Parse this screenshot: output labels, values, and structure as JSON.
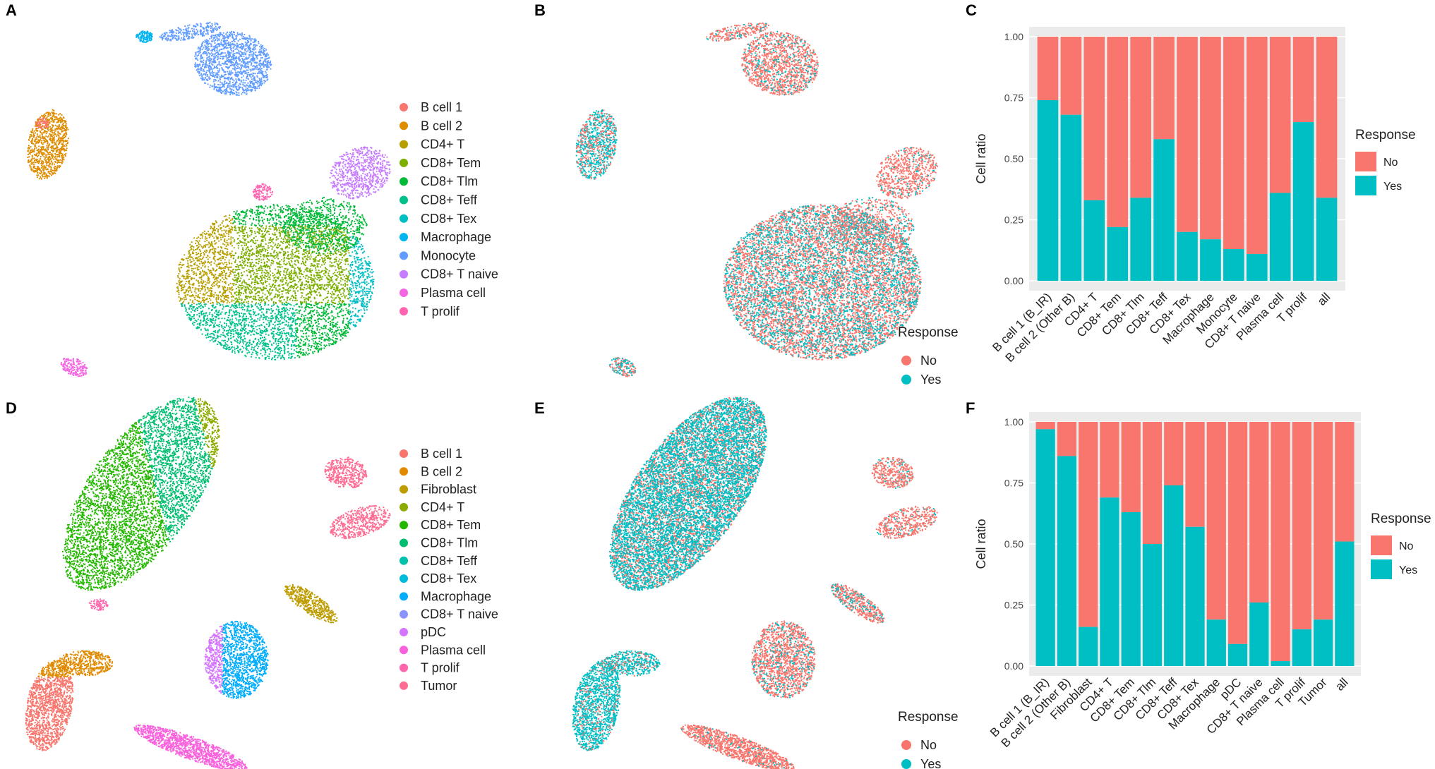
{
  "colors": {
    "red": "#F8766D",
    "teal": "#00BFC4",
    "panel_bg": "#EBEBEB",
    "grid": "#FFFFFF"
  },
  "panels": {
    "A": {
      "label": "A",
      "legend": [
        "B cell 1",
        "B cell 2",
        "CD4+ T",
        "CD8+ Tem",
        "CD8+ Tlm",
        "CD8+ Teff",
        "CD8+ Tex",
        "Macrophage",
        "Monocyte",
        "CD8+ T naive",
        "Plasma cell",
        "T prolif"
      ],
      "legend_colors": [
        "#F8766D",
        "#DE8C00",
        "#B79F00",
        "#7CAE00",
        "#00BA38",
        "#00C08B",
        "#00BFC4",
        "#00B4F0",
        "#619CFF",
        "#C77CFF",
        "#F564E3",
        "#FF64B0"
      ]
    },
    "B": {
      "label": "B",
      "legend_title": "Response",
      "legend": [
        "No",
        "Yes"
      ]
    },
    "D": {
      "label": "D",
      "legend": [
        "B cell 1",
        "B cell 2",
        "Fibroblast",
        "CD4+ T",
        "CD8+ Tem",
        "CD8+ Tlm",
        "CD8+ Teff",
        "CD8+ Tex",
        "Macrophage",
        "CD8+ T naive",
        "pDC",
        "Plasma cell",
        "T prolif",
        "Tumor"
      ],
      "legend_colors": [
        "#F8766D",
        "#E18A00",
        "#BE9C00",
        "#8CAB00",
        "#24B700",
        "#00BE70",
        "#00C1AB",
        "#00BBDA",
        "#00ACFC",
        "#8B93FF",
        "#D575FE",
        "#F962DD",
        "#FF65AC",
        "#FF6C91"
      ]
    },
    "E": {
      "label": "E",
      "legend_title": "Response",
      "legend": [
        "No",
        "Yes"
      ]
    }
  },
  "chart_data": [
    {
      "panel": "C",
      "type": "bar",
      "stacked": true,
      "categories": [
        "B cell 1 (B_IR)",
        "B cell 2 (Other B)",
        "CD4+ T",
        "CD8+ Tem",
        "CD8+ Tlm",
        "CD8+ Teff",
        "CD8+ Tex",
        "Macrophage",
        "Monocyte",
        "CD8+ T naive",
        "Plasma cell",
        "T prolif",
        "all"
      ],
      "series": [
        {
          "name": "Yes",
          "values": [
            0.74,
            0.68,
            0.33,
            0.22,
            0.34,
            0.58,
            0.2,
            0.17,
            0.13,
            0.11,
            0.36,
            0.65,
            0.34
          ]
        },
        {
          "name": "No",
          "values": [
            0.26,
            0.32,
            0.67,
            0.78,
            0.66,
            0.42,
            0.8,
            0.83,
            0.87,
            0.89,
            0.64,
            0.35,
            0.66
          ]
        }
      ],
      "ylabel": "Cell ratio",
      "yticks": [
        "0.00",
        "0.25",
        "0.50",
        "0.75",
        "1.00"
      ],
      "ylim": [
        0,
        1
      ],
      "legend_title": "Response",
      "legend": [
        "No",
        "Yes"
      ]
    },
    {
      "panel": "F",
      "type": "bar",
      "stacked": true,
      "categories": [
        "B cell 1 (B_IR)",
        "B cell 2 (Other B)",
        "Fibroblast",
        "CD4+ T",
        "CD8+ Tem",
        "CD8+ Tlm",
        "CD8+ Teff",
        "CD8+ Tex",
        "Macrophage",
        "pDC",
        "CD8+ T naive",
        "Plasma cell",
        "T prolif",
        "Tumor",
        "all"
      ],
      "series": [
        {
          "name": "Yes",
          "values": [
            0.97,
            0.86,
            0.16,
            0.69,
            0.63,
            0.5,
            0.74,
            0.57,
            0.19,
            0.09,
            0.26,
            0.02,
            0.15,
            0.19,
            0.51
          ]
        },
        {
          "name": "No",
          "values": [
            0.03,
            0.14,
            0.84,
            0.31,
            0.37,
            0.5,
            0.26,
            0.43,
            0.81,
            0.91,
            0.74,
            0.98,
            0.85,
            0.81,
            0.49
          ]
        }
      ],
      "ylabel": "Cell ratio",
      "yticks": [
        "0.00",
        "0.25",
        "0.50",
        "0.75",
        "1.00"
      ],
      "ylim": [
        0,
        1
      ],
      "legend_title": "Response",
      "legend": [
        "No",
        "Yes"
      ]
    }
  ]
}
